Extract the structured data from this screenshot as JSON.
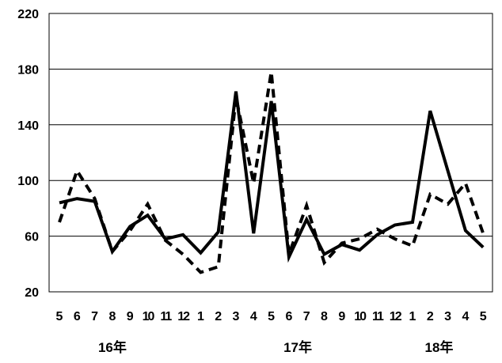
{
  "chart_data": {
    "type": "line",
    "x": [
      "5",
      "6",
      "7",
      "8",
      "9",
      "10",
      "11",
      "12",
      "1",
      "2",
      "3",
      "4",
      "5",
      "6",
      "7",
      "8",
      "9",
      "10",
      "11",
      "12",
      "1",
      "2",
      "3",
      "4",
      "5"
    ],
    "year_labels": [
      {
        "text": "16年",
        "at_index": 3
      },
      {
        "text": "17年",
        "at_index": 13.5
      },
      {
        "text": "18年",
        "at_index": 21.5
      }
    ],
    "series": [
      {
        "style": "solid",
        "values": [
          84,
          87,
          85,
          49,
          67,
          75,
          58,
          61,
          48,
          63,
          164,
          62,
          157,
          45,
          72,
          47,
          54,
          50,
          61,
          68,
          70,
          150,
          107,
          64,
          52
        ]
      },
      {
        "style": "dashed",
        "values": [
          70,
          107,
          87,
          49,
          64,
          83,
          57,
          47,
          34,
          38,
          160,
          98,
          178,
          47,
          82,
          41,
          55,
          58,
          65,
          58,
          53,
          90,
          83,
          98,
          62
        ]
      }
    ],
    "ylim": [
      20,
      220
    ],
    "yticks": [
      20,
      60,
      100,
      140,
      180,
      220
    ],
    "grid": "horizontal",
    "legend": "none",
    "colors": {
      "series": "#000000",
      "grid": "#000000",
      "background": "#ffffff"
    }
  }
}
